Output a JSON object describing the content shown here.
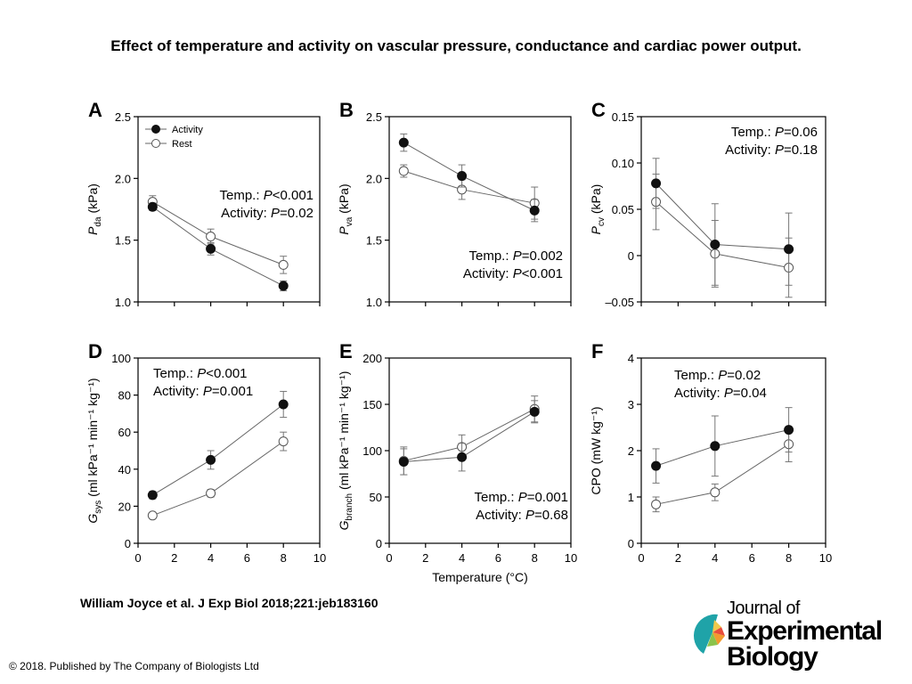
{
  "header": {
    "title": "Effect of temperature and activity on vascular pressure, conductance and cardiac power output."
  },
  "citation": "William Joyce et al. J Exp Biol 2018;221:jeb183160",
  "copyright": "© 2018. Published by The Company of Biologists Ltd",
  "logo": {
    "line1": "Journal of",
    "line2": "Experimental",
    "line3": "Biology"
  },
  "colors": {
    "activity": "#111111",
    "rest": "#ffffff",
    "line": "#666666",
    "error_bar": "#777777",
    "axis": "#000000"
  },
  "chart_data": [
    {
      "panel": "A",
      "type": "line",
      "ylabel_main": "P",
      "ylabel_sub": "da",
      "ylabel_unit": " (kPa)",
      "xlim": [
        0,
        10
      ],
      "ylim": [
        1.0,
        2.5
      ],
      "yticks": [
        1.0,
        1.5,
        2.0,
        2.5
      ],
      "ytick_labels": [
        "1.0",
        "1.5",
        "2.0",
        "2.5"
      ],
      "xtick_labels": [],
      "x": [
        0.8,
        4,
        8
      ],
      "series": [
        {
          "name": "Activity",
          "values": [
            1.77,
            1.43,
            1.13
          ],
          "errors": [
            0.03,
            0.05,
            0.04
          ]
        },
        {
          "name": "Rest",
          "values": [
            1.81,
            1.53,
            1.3
          ],
          "errors": [
            0.05,
            0.06,
            0.07
          ]
        }
      ],
      "legend": [
        "Activity",
        "Rest"
      ],
      "stats": [
        {
          "label": "Temp.: ",
          "p": "P",
          "value": "<0.001"
        },
        {
          "label": "Activity: ",
          "p": "P",
          "value": "=0.02"
        }
      ]
    },
    {
      "panel": "B",
      "type": "line",
      "ylabel_main": "P",
      "ylabel_sub": "va",
      "ylabel_unit": " (kPa)",
      "xlim": [
        0,
        10
      ],
      "ylim": [
        1.0,
        2.5
      ],
      "yticks": [
        1.0,
        1.5,
        2.0,
        2.5
      ],
      "ytick_labels": [
        "1.0",
        "1.5",
        "2.0",
        "2.5"
      ],
      "xtick_labels": [],
      "x": [
        0.8,
        4,
        8
      ],
      "series": [
        {
          "name": "Activity",
          "values": [
            2.29,
            2.02,
            1.74
          ],
          "errors": [
            0.07,
            0.09,
            0.09
          ]
        },
        {
          "name": "Rest",
          "values": [
            2.06,
            1.91,
            1.8
          ],
          "errors": [
            0.05,
            0.08,
            0.13
          ]
        }
      ],
      "stats": [
        {
          "label": "Temp.: ",
          "p": "P",
          "value": "=0.002"
        },
        {
          "label": "Activity: ",
          "p": "P",
          "value": "<0.001"
        }
      ]
    },
    {
      "panel": "C",
      "type": "line",
      "ylabel_main": "P",
      "ylabel_sub": "cv",
      "ylabel_unit": " (kPa)",
      "xlim": [
        0,
        10
      ],
      "ylim": [
        -0.05,
        0.15
      ],
      "yticks": [
        -0.05,
        0,
        0.05,
        0.1,
        0.15
      ],
      "ytick_labels": [
        "–0.05",
        "0",
        "0.05",
        "0.10",
        "0.15"
      ],
      "xtick_labels": [],
      "x": [
        0.8,
        4,
        8
      ],
      "series": [
        {
          "name": "Activity",
          "values": [
            0.078,
            0.012,
            0.007
          ],
          "errors": [
            0.027,
            0.044,
            0.039
          ]
        },
        {
          "name": "Rest",
          "values": [
            0.058,
            0.002,
            -0.013
          ],
          "errors": [
            0.03,
            0.036,
            0.032
          ]
        }
      ],
      "stats": [
        {
          "label": "Temp.: ",
          "p": "P",
          "value": "=0.06"
        },
        {
          "label": "Activity: ",
          "p": "P",
          "value": "=0.18"
        }
      ]
    },
    {
      "panel": "D",
      "type": "line",
      "ylabel_main": "G",
      "ylabel_sub": "sys",
      "ylabel_unit": " (ml kPa⁻¹ min⁻¹ kg⁻¹)",
      "xlim": [
        0,
        10
      ],
      "ylim": [
        0,
        100
      ],
      "yticks": [
        0,
        20,
        40,
        60,
        80,
        100
      ],
      "ytick_labels": [
        "0",
        "20",
        "40",
        "60",
        "80",
        "100"
      ],
      "xtick_labels": [
        "0",
        "2",
        "4",
        "6",
        "8",
        "10"
      ],
      "x": [
        0.8,
        4,
        8
      ],
      "series": [
        {
          "name": "Activity",
          "values": [
            26,
            45,
            75
          ],
          "errors": [
            2,
            5,
            7
          ]
        },
        {
          "name": "Rest",
          "values": [
            15,
            27,
            55
          ],
          "errors": [
            1,
            2,
            5
          ]
        }
      ],
      "stats": [
        {
          "label": "Temp.: ",
          "p": "P",
          "value": "<0.001"
        },
        {
          "label": "Activity: ",
          "p": "P",
          "value": "=0.001"
        }
      ]
    },
    {
      "panel": "E",
      "type": "line",
      "ylabel_main": "G",
      "ylabel_sub": "branch",
      "ylabel_unit": " (ml kPa⁻¹ min⁻¹ kg⁻¹)",
      "xlabel": "Temperature (°C)",
      "xlim": [
        0,
        10
      ],
      "ylim": [
        0,
        200
      ],
      "yticks": [
        0,
        50,
        100,
        150,
        200
      ],
      "ytick_labels": [
        "0",
        "50",
        "100",
        "150",
        "200"
      ],
      "xtick_labels": [
        "0",
        "2",
        "4",
        "6",
        "8",
        "10"
      ],
      "x": [
        0.8,
        4,
        8
      ],
      "series": [
        {
          "name": "Activity",
          "values": [
            88,
            93,
            142
          ],
          "errors": [
            14,
            15,
            12
          ]
        },
        {
          "name": "Rest",
          "values": [
            89,
            104,
            145
          ],
          "errors": [
            15,
            13,
            14
          ]
        }
      ],
      "stats": [
        {
          "label": "Temp.: ",
          "p": "P",
          "value": "=0.001"
        },
        {
          "label": "Activity: ",
          "p": "P",
          "value": "=0.68"
        }
      ]
    },
    {
      "panel": "F",
      "type": "line",
      "ylabel_main": "CPO",
      "ylabel_sub": "",
      "ylabel_unit": " (mW kg⁻¹)",
      "xlim": [
        0,
        10
      ],
      "ylim": [
        0,
        4
      ],
      "yticks": [
        0,
        1,
        2,
        3,
        4
      ],
      "ytick_labels": [
        "0",
        "1",
        "2",
        "3",
        "4"
      ],
      "xtick_labels": [
        "0",
        "2",
        "4",
        "6",
        "8",
        "10"
      ],
      "x": [
        0.8,
        4,
        8
      ],
      "series": [
        {
          "name": "Activity",
          "values": [
            1.67,
            2.1,
            2.45
          ],
          "errors": [
            0.37,
            0.65,
            0.48
          ]
        },
        {
          "name": "Rest",
          "values": [
            0.84,
            1.1,
            2.14
          ],
          "errors": [
            0.16,
            0.18,
            0.38
          ]
        }
      ],
      "stats": [
        {
          "label": "Temp.: ",
          "p": "P",
          "value": "=0.02"
        },
        {
          "label": "Activity: ",
          "p": "P",
          "value": "=0.04"
        }
      ]
    }
  ]
}
